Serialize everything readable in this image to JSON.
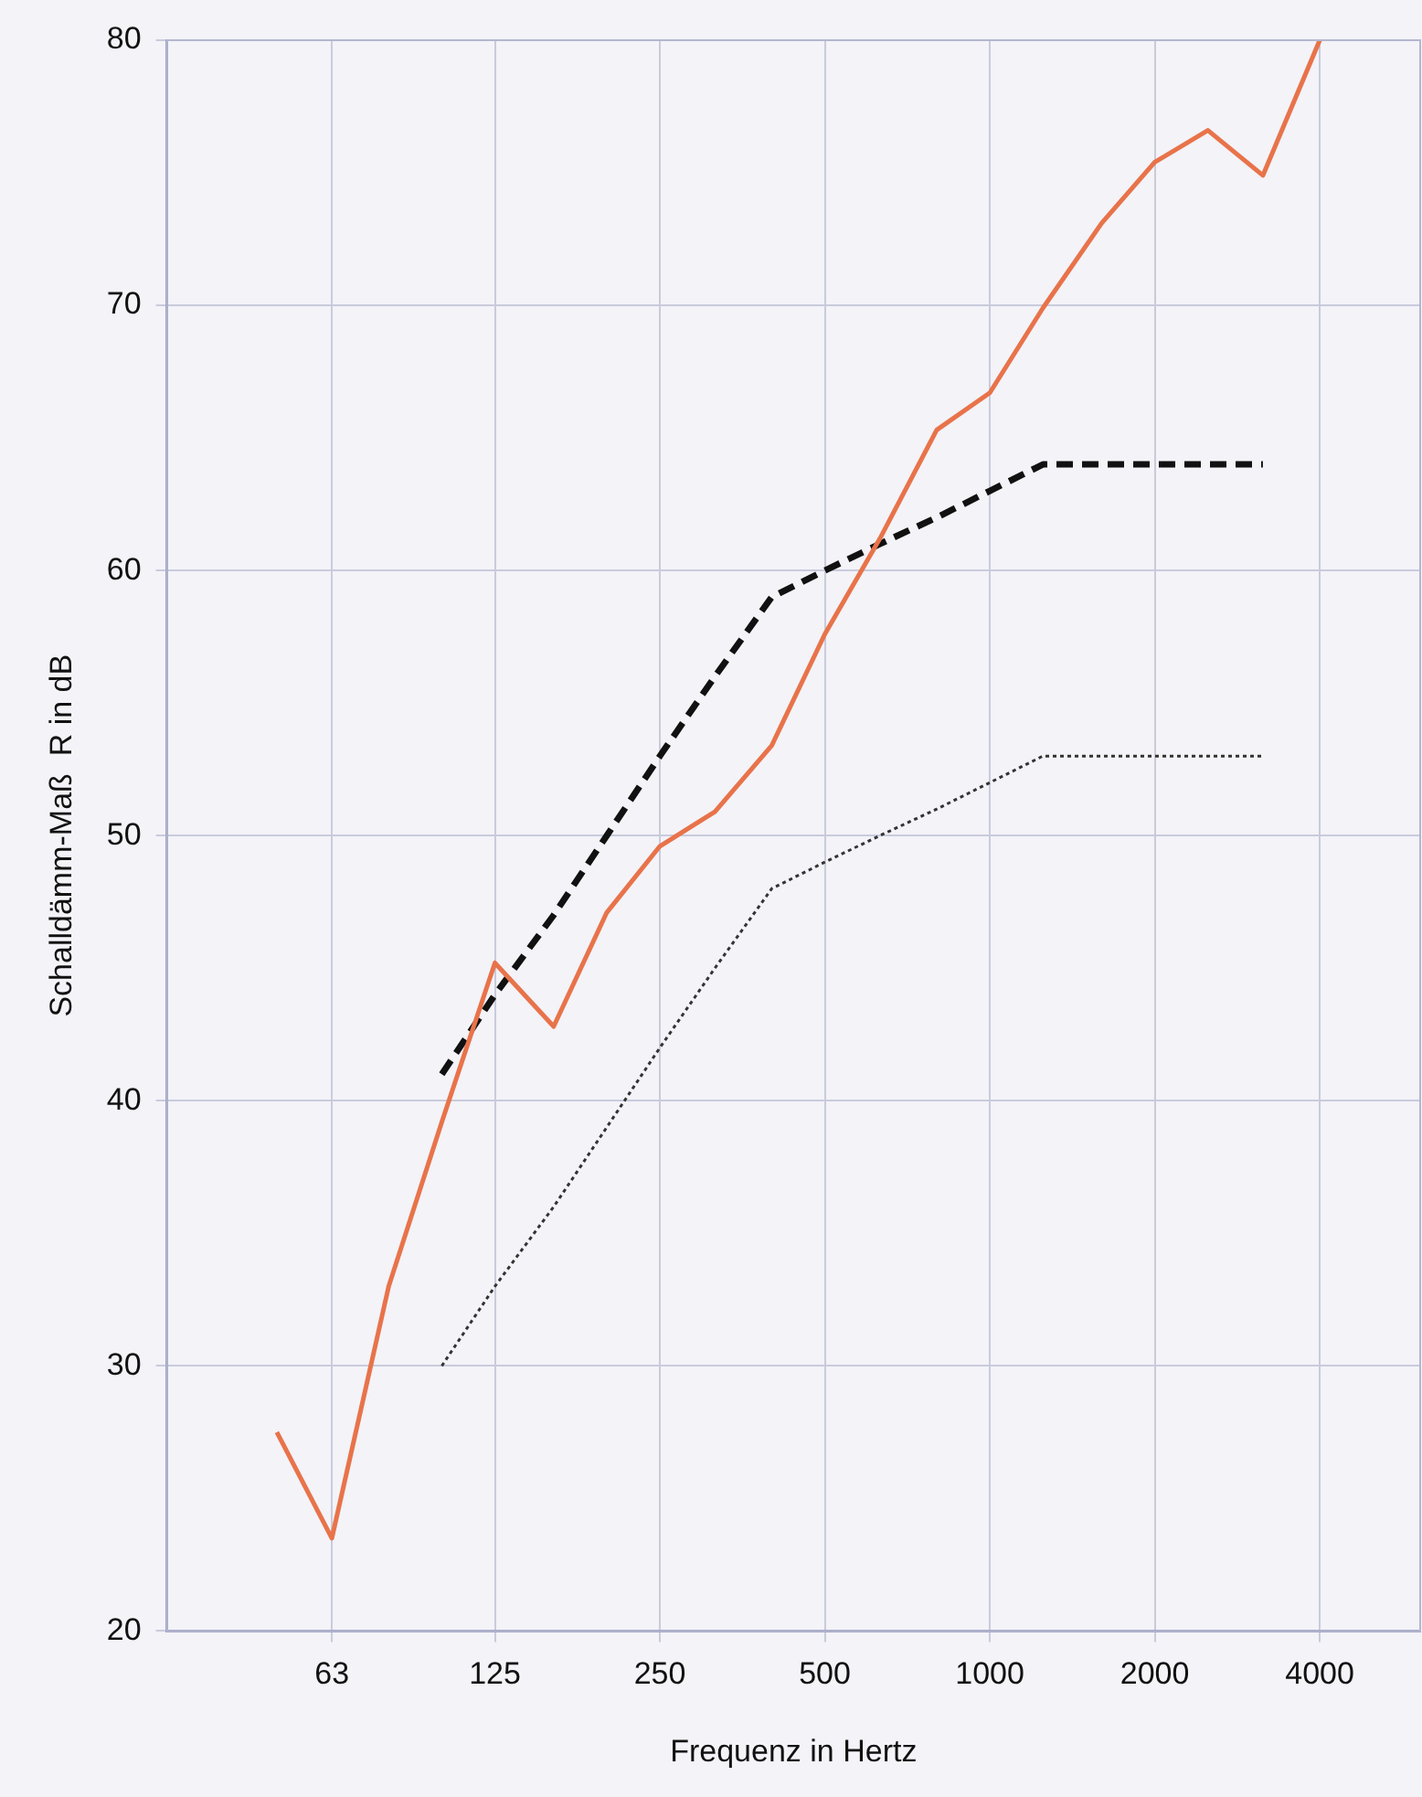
{
  "chart_data": {
    "type": "line",
    "xlabel": "Frequenz in Hertz",
    "ylabel": "Schalldämm-Maß  R in dB",
    "log": "x",
    "xlim": [
      31.5,
      6100
    ],
    "xticks": [
      63,
      125,
      250,
      500,
      1000,
      2000,
      4000
    ],
    "ylim": [
      20,
      80
    ],
    "yticks": [
      20,
      30,
      40,
      50,
      60,
      70,
      80
    ],
    "grid": true,
    "legend": false,
    "marker": "none",
    "series": [
      {
        "color": "#e8734a",
        "line_style": "solid",
        "x": [
          50,
          63,
          80,
          100,
          125,
          160,
          200,
          250,
          315,
          400,
          500,
          630,
          800,
          1000,
          1250,
          1600,
          2000,
          2500,
          3150,
          4000
        ],
        "values": [
          27.5,
          23.5,
          33,
          39.2,
          45.2,
          42.8,
          47.1,
          49.6,
          50.9,
          53.4,
          57.6,
          61.2,
          65.3,
          66.7,
          69.9,
          73.1,
          75.4,
          76.6,
          74.9,
          80
        ]
      },
      {
        "color": "#111111",
        "line_style": "dashed",
        "x": [
          100,
          125,
          160,
          200,
          250,
          315,
          400,
          500,
          630,
          800,
          1000,
          1250,
          1600,
          2000,
          2500,
          3150
        ],
        "values": [
          41,
          44,
          47,
          50,
          53,
          56,
          59,
          60,
          61,
          62,
          63,
          64,
          64,
          64,
          64,
          64
        ]
      },
      {
        "color": "#333333",
        "line_style": "dotted",
        "x": [
          100,
          125,
          160,
          200,
          250,
          315,
          400,
          500,
          630,
          800,
          1000,
          1250,
          1600,
          2000,
          2500,
          3150
        ],
        "values": [
          30,
          33,
          36,
          39,
          42,
          45,
          48,
          49,
          50,
          51,
          52,
          53,
          53,
          53,
          53,
          53
        ]
      }
    ]
  }
}
